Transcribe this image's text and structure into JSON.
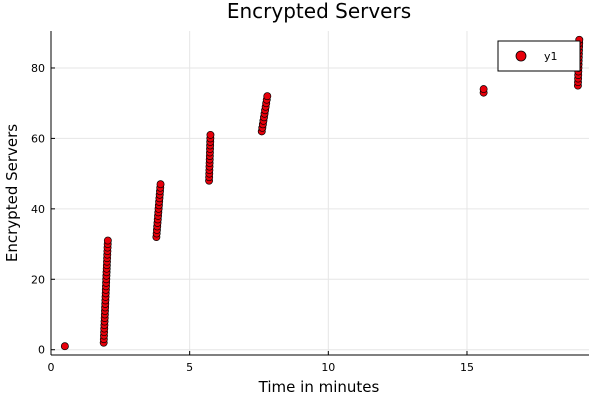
{
  "chart_data": {
    "type": "scatter",
    "title": "Encrypted Servers",
    "xlabel": "Time in minutes",
    "ylabel": "Encrypted Servers",
    "xlim": [
      0,
      19.4
    ],
    "ylim": [
      -1.5,
      90.5
    ],
    "xticks": [
      0,
      5,
      10,
      15
    ],
    "yticks": [
      0,
      20,
      40,
      60,
      80
    ],
    "grid": true,
    "legend_position": "top-right",
    "series": [
      {
        "name": "y1",
        "color": "#e8000b",
        "marker_edge": "#000000",
        "clusters": [
          {
            "x_start": 0.5,
            "x_end": 0.5,
            "y_start": 1,
            "y_end": 1
          },
          {
            "x_start": 1.9,
            "x_end": 2.05,
            "y_start": 2,
            "y_end": 31
          },
          {
            "x_start": 3.8,
            "x_end": 3.95,
            "y_start": 32,
            "y_end": 47
          },
          {
            "x_start": 5.7,
            "x_end": 5.75,
            "y_start": 48,
            "y_end": 61
          },
          {
            "x_start": 7.6,
            "x_end": 7.8,
            "y_start": 62,
            "y_end": 72
          },
          {
            "x_start": 15.6,
            "x_end": 15.6,
            "y_start": 73,
            "y_end": 74
          },
          {
            "x_start": 19.0,
            "x_end": 19.05,
            "y_start": 75,
            "y_end": 88
          }
        ]
      }
    ]
  }
}
